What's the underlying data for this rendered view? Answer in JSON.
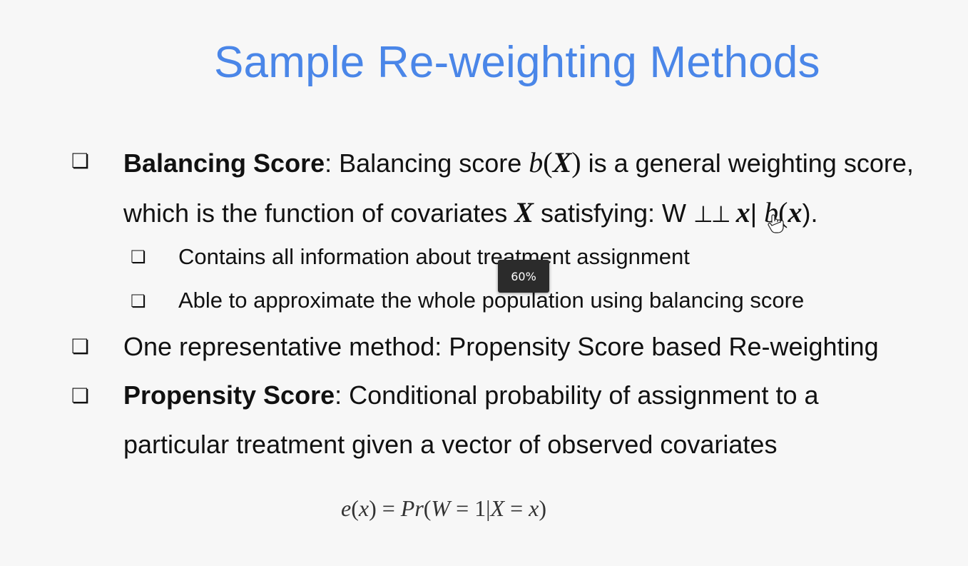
{
  "title": "Sample Re-weighting Methods",
  "bullet_glyph": "❏",
  "balancing": {
    "label": "Balancing Score",
    "text1": ": Balancing score ",
    "b": "b",
    "lparen": "(",
    "X": "X",
    "rparen": ")",
    "text2": " is a general weighting score,",
    "text3": "which is the function of covariates ",
    "X2": "X",
    "text4": " satisfying: W ",
    "indep": "⊥⊥",
    "x": "x",
    "bar": "| ",
    "b2": "b",
    "lparen2": "(",
    "x2": "x",
    "rparen2": ").",
    "sub1": "Contains  all information about treatment assignment",
    "sub2": "Able to approximate the whole population using balancing score"
  },
  "representative": "One representative method: Propensity Score based Re-weighting",
  "propensity": {
    "label": "Propensity Score",
    "text1": ": Conditional probability of assignment to a",
    "text2": "particular treatment given a vector of observed covariates"
  },
  "equation": {
    "e": "e",
    "open1": "(",
    "x": "x",
    "close1": ")",
    "eq": " = ",
    "Pr": "Pr",
    "open2": "(",
    "W": "W",
    "eq2": " = 1|",
    "X": "X",
    "eq3": " = ",
    "x2": "x",
    "close2": ")"
  },
  "zoom_tooltip": "60%",
  "colors": {
    "title": "#4a86e8",
    "background": "#f7f7f7",
    "tooltip": "#2b2b2b"
  }
}
